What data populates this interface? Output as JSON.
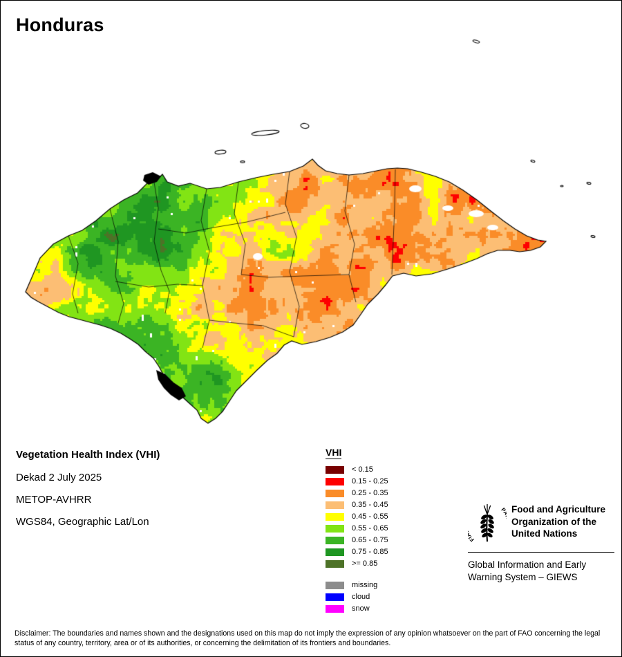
{
  "title": "Honduras",
  "map": {
    "name": "honduras-vegetation-health-index-map"
  },
  "info": {
    "heading": "Vegetation Health Index (VHI)",
    "lines": [
      "Dekad 2 July 2025",
      "METOP-AVHRR",
      "WGS84, Geographic Lat/Lon"
    ]
  },
  "legend": {
    "title": "VHI",
    "classes": [
      {
        "label": "< 0.15",
        "color": "#780000"
      },
      {
        "label": "0.15 - 0.25",
        "color": "#FE0000"
      },
      {
        "label": "0.25 - 0.35",
        "color": "#FA8C28"
      },
      {
        "label": "0.35 - 0.45",
        "color": "#FCBE74"
      },
      {
        "label": "0.45 - 0.55",
        "color": "#FFFF00"
      },
      {
        "label": "0.55 - 0.65",
        "color": "#82E414"
      },
      {
        "label": "0.65 - 0.75",
        "color": "#3BB424"
      },
      {
        "label": "0.75 - 0.85",
        "color": "#1F9622"
      },
      {
        "label": ">= 0.85",
        "color": "#4D7227"
      }
    ],
    "extra": [
      {
        "label": "missing",
        "color": "#8C8C8C"
      },
      {
        "label": "cloud",
        "color": "#0000FF"
      },
      {
        "label": "snow",
        "color": "#FF00FF"
      }
    ]
  },
  "footer": {
    "fao_name": "Food and Agriculture\nOrganization of the\nUnited Nations",
    "giews": "Global Information and Early\nWarning System – GIEWS",
    "fiat_panis": "FIAT PANIS"
  },
  "disclaimer": "Disclaimer: The boundaries and names shown and the designations used on this map do not imply the expression of any opinion whatsoever on the part of FAO concerning the legal status of any country, territory, area or of its authorities, or concerning the delimitation of its frontiers and boundaries."
}
